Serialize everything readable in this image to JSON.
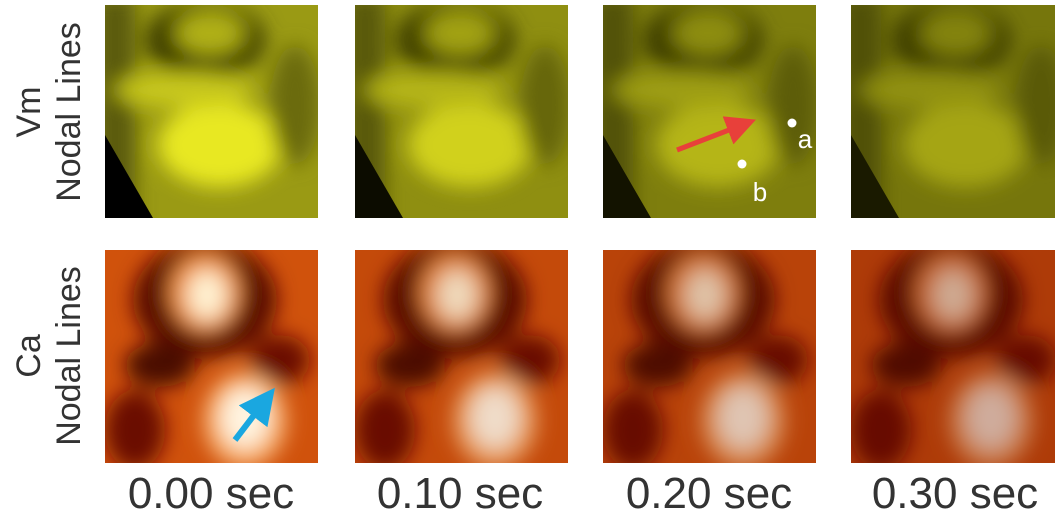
{
  "row_labels": [
    {
      "line1": "Vm",
      "line2": "Nodal Lines"
    },
    {
      "line1": "Ca",
      "line2": "Nodal Lines"
    }
  ],
  "column_labels": [
    "0.00 sec",
    "0.10 sec",
    "0.20 sec",
    "0.30 sec"
  ],
  "annotations": [
    "a",
    "b"
  ]
}
